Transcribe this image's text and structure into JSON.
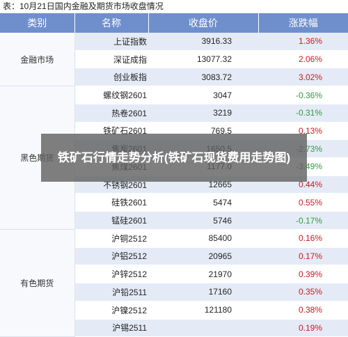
{
  "caption": "表：10月21日国内金融及期货市场收盘情况",
  "headers": [
    "类别",
    "名称",
    "收盘价",
    "涨跌幅"
  ],
  "groups": [
    {
      "category": "金融市场",
      "rows": [
        {
          "name": "上证指数",
          "price": "3916.33",
          "change": "1.36%",
          "dir": "up"
        },
        {
          "name": "深证成指",
          "price": "13077.32",
          "change": "2.06%",
          "dir": "up"
        },
        {
          "name": "创业板指",
          "price": "3083.72",
          "change": "3.02%",
          "dir": "up"
        }
      ]
    },
    {
      "category": "黑色期货",
      "rows": [
        {
          "name": "螺纹钢2601",
          "price": "3047",
          "change": "-0.36%",
          "dir": "down"
        },
        {
          "name": "热卷2601",
          "price": "3219",
          "change": "-0.31%",
          "dir": "down"
        },
        {
          "name": "铁矿石2601",
          "price": "769.5",
          "change": "0.13%",
          "dir": "up"
        },
        {
          "name": "焦炭2601",
          "price": "1650.5",
          "change": "-2.73%",
          "dir": "down"
        },
        {
          "name": "焦煤2601",
          "price": "1177.0",
          "change": "-3.49%",
          "dir": "down"
        },
        {
          "name": "不锈钢2601",
          "price": "12665",
          "change": "0.44%",
          "dir": "up"
        },
        {
          "name": "硅铁2601",
          "price": "5474",
          "change": "0.55%",
          "dir": "up"
        },
        {
          "name": "锰硅2601",
          "price": "5746",
          "change": "-0.17%",
          "dir": "down"
        }
      ]
    },
    {
      "category": "有色期货",
      "rows": [
        {
          "name": "沪铜2512",
          "price": "85400",
          "change": "0.16%",
          "dir": "up"
        },
        {
          "name": "沪铝2512",
          "price": "20965",
          "change": "0.17%",
          "dir": "up"
        },
        {
          "name": "沪锌2512",
          "price": "21970",
          "change": "0.39%",
          "dir": "up"
        },
        {
          "name": "沪铅2511",
          "price": "17160",
          "change": "0.35%",
          "dir": "up"
        },
        {
          "name": "沪镍2512",
          "price": "121180",
          "change": "0.38%",
          "dir": "up"
        },
        {
          "name": "沪锡2511",
          "price": "",
          "change": "0.19%",
          "dir": "up"
        }
      ]
    }
  ],
  "overlay_title": "铁矿石行情走势分析(铁矿石现货费用走势图)",
  "colors": {
    "header_bg": "#6f8fcc",
    "row_stripe": "#e4ebf6",
    "up": "#d0181b",
    "down": "#2f9c3c"
  }
}
